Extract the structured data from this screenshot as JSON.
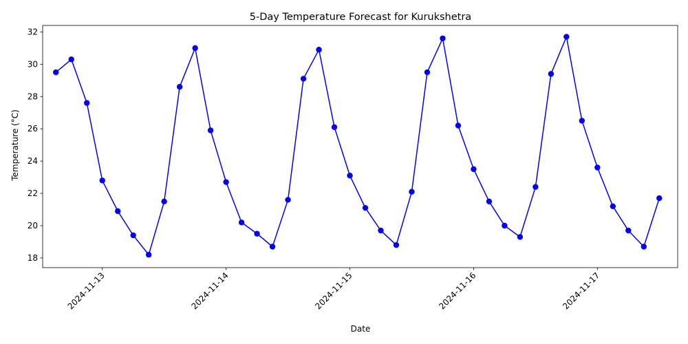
{
  "chart_data": {
    "type": "line",
    "title": "5-Day Temperature Forecast for Kurukshetra",
    "xlabel": "Date",
    "ylabel": "Temperature (°C)",
    "x_ticks": [
      "2024-11-13",
      "2024-11-14",
      "2024-11-15",
      "2024-11-16",
      "2024-11-17"
    ],
    "y_ticks": [
      "18",
      "20",
      "22",
      "24",
      "26",
      "28",
      "30",
      "32"
    ],
    "ylim": [
      17.4,
      32.4
    ],
    "xlim": [
      "2024-11-12 12:26",
      "2024-11-17 15:34"
    ],
    "grid": false,
    "series": [
      {
        "color": "#0000ff",
        "marker": "circle",
        "x": [
          "2024-11-12 15:00",
          "2024-11-12 18:00",
          "2024-11-12 21:00",
          "2024-11-13 00:00",
          "2024-11-13 03:00",
          "2024-11-13 06:00",
          "2024-11-13 09:00",
          "2024-11-13 12:00",
          "2024-11-13 15:00",
          "2024-11-13 18:00",
          "2024-11-13 21:00",
          "2024-11-14 00:00",
          "2024-11-14 03:00",
          "2024-11-14 06:00",
          "2024-11-14 09:00",
          "2024-11-14 12:00",
          "2024-11-14 15:00",
          "2024-11-14 18:00",
          "2024-11-14 21:00",
          "2024-11-15 00:00",
          "2024-11-15 03:00",
          "2024-11-15 06:00",
          "2024-11-15 09:00",
          "2024-11-15 12:00",
          "2024-11-15 15:00",
          "2024-11-15 18:00",
          "2024-11-15 21:00",
          "2024-11-16 00:00",
          "2024-11-16 03:00",
          "2024-11-16 06:00",
          "2024-11-16 09:00",
          "2024-11-16 12:00",
          "2024-11-16 15:00",
          "2024-11-16 18:00",
          "2024-11-16 21:00",
          "2024-11-17 00:00",
          "2024-11-17 03:00",
          "2024-11-17 06:00",
          "2024-11-17 09:00",
          "2024-11-17 12:00"
        ],
        "y": [
          29.5,
          30.3,
          27.6,
          22.8,
          20.9,
          19.4,
          18.2,
          21.5,
          28.6,
          31.0,
          25.9,
          22.7,
          20.2,
          19.5,
          18.7,
          21.6,
          29.1,
          30.9,
          26.1,
          23.1,
          21.1,
          19.7,
          18.8,
          22.1,
          29.5,
          31.6,
          26.2,
          23.5,
          21.5,
          20.0,
          19.3,
          22.4,
          29.4,
          31.7,
          26.5,
          23.6,
          21.2,
          19.7,
          18.7,
          21.7
        ]
      }
    ]
  }
}
